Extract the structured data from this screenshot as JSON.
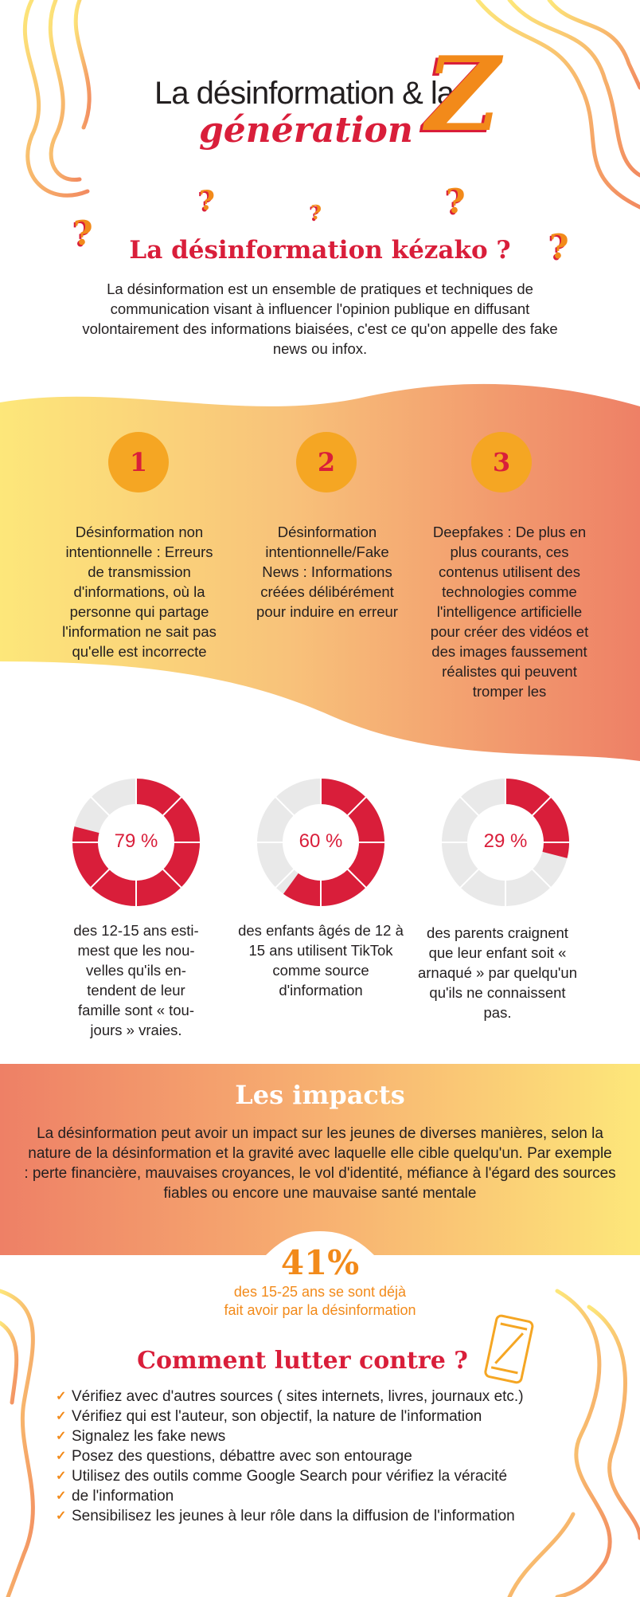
{
  "header": {
    "title_line1": "La désinformation & la",
    "title_line2": "génération",
    "title_letter": "Z"
  },
  "qmark": "?",
  "definition": {
    "title": "La désinformation kézako ?",
    "text": "La désinformation est un ensemble de pratiques et techniques de communication visant à influencer l'opinion publique en diffusant volontairement des informations biaisées, c'est ce qu'on appelle des fake news ou infox."
  },
  "types": [
    {
      "number": "1",
      "text": "Désinformation non intentionnelle : Erreurs de transmission d'informations, où la personne qui partage l'information ne sait pas qu'elle est incorrecte"
    },
    {
      "number": "2",
      "text": "Désinformation intentionnelle/Fake News : Informations créées délibérément pour induire en erreur"
    },
    {
      "number": "3",
      "text": "Deepfakes : De plus en plus courants, ces contenus utilisent des technologies comme l'intelligence artificielle pour créer des vidéos et des images faussement réalistes qui peuvent tromper les"
    }
  ],
  "stats": [
    {
      "value": 79,
      "label": "79 %",
      "text": "des 12-15 ans esti-mest que les nou-velles qu'ils en-tendent de leur famille sont « tou-jours » vraies."
    },
    {
      "value": 60,
      "label": "60 %",
      "text": "des enfants âgés de 12 à 15 ans utilisent TikTok comme source d'information"
    },
    {
      "value": 29,
      "label": "29 %",
      "text": "des parents craignent que leur enfant soit « arnaqué » par quelqu'un qu'ils ne connaissent pas."
    }
  ],
  "impacts": {
    "title": "Les impacts",
    "text": "La désinformation peut avoir un impact sur les jeunes de diverses manières, selon la nature de la désinformation et la gravité avec laquelle elle cible quelqu'un. Par exemple : perte financière, mauvaises croyances, le vol d'identité, méfiance à l'égard des sources fiables ou encore une mauvaise santé mentale",
    "stat_value": "41%",
    "stat_text_line1": "des 15-25 ans se sont déjà",
    "stat_text_line2": "fait avoir par la désinformation"
  },
  "fight": {
    "title": "Comment lutter contre ?",
    "check_icon": "✓",
    "tips": [
      "Vérifiez avec d'autres sources ( sites internets, livres, journaux etc.)",
      "Vérifiez qui est l'auteur, son objectif, la nature de l'information",
      "Signalez les fake news",
      "Posez des questions, débattre avec son entourage",
      "Utilisez des outils comme Google Search pour vérifiez la véracité",
      "de l'information",
      "Sensibilisez les jeunes à leur rôle dans la diffusion de l'information"
    ]
  },
  "colors": {
    "red": "#d91e3a",
    "orange": "#f28a1a",
    "yellow": "#fde77a",
    "salmon": "#ee8066",
    "donut_gray": "#e9e9e9"
  },
  "icons": [
    "question-mark-icon",
    "check-icon",
    "phone-icon",
    "decorative-wave-lines"
  ]
}
